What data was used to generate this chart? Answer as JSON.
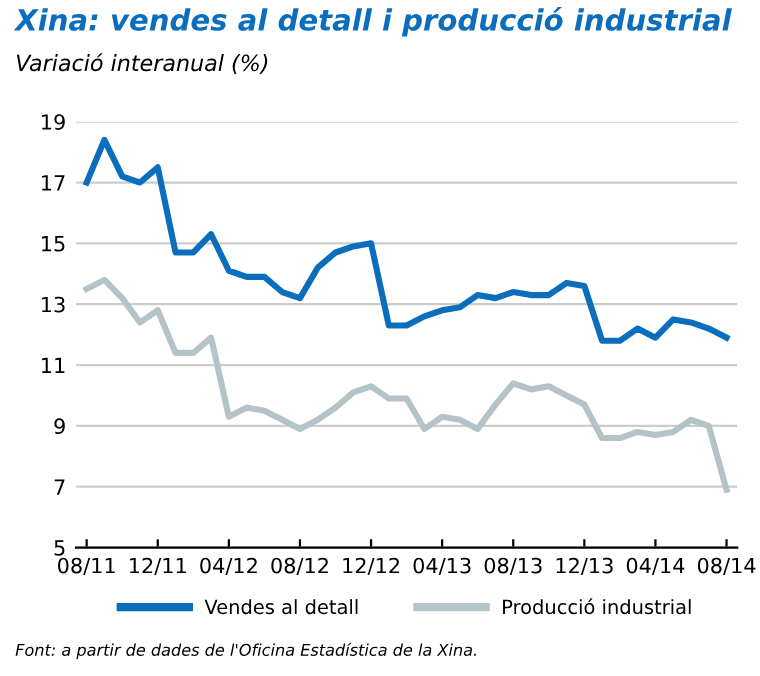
{
  "chart_data": {
    "type": "line",
    "title": "Xina: vendes al detall i producció industrial",
    "subtitle": "Variació interanual (%)",
    "categories": [
      "08/11",
      null,
      null,
      null,
      "12/11",
      null,
      null,
      null,
      "04/12",
      null,
      null,
      null,
      "08/12",
      null,
      null,
      null,
      "12/12",
      null,
      null,
      null,
      "04/13",
      null,
      null,
      null,
      "08/13",
      null,
      null,
      null,
      "12/13",
      null,
      null,
      null,
      "04/14",
      null,
      null,
      null,
      "08/14"
    ],
    "series": [
      {
        "name": "Vendes al detall",
        "color": "#0a6ebd",
        "values": [
          17.0,
          18.4,
          17.2,
          17.0,
          17.5,
          14.7,
          14.7,
          15.3,
          14.1,
          13.9,
          13.9,
          13.4,
          13.2,
          14.2,
          14.7,
          14.9,
          15.0,
          12.3,
          12.3,
          12.6,
          12.8,
          12.9,
          13.3,
          13.2,
          13.4,
          13.3,
          13.3,
          13.7,
          13.6,
          11.8,
          11.8,
          12.2,
          11.9,
          12.5,
          12.4,
          12.2,
          11.9
        ]
      },
      {
        "name": "Producció industrial",
        "color": "#b4c3c8",
        "values": [
          13.5,
          13.8,
          13.2,
          12.4,
          12.8,
          11.4,
          11.4,
          11.9,
          9.3,
          9.6,
          9.5,
          9.2,
          8.9,
          9.2,
          9.6,
          10.1,
          10.3,
          9.9,
          9.9,
          8.9,
          9.3,
          9.2,
          8.9,
          9.7,
          10.4,
          10.2,
          10.3,
          10.0,
          9.7,
          8.6,
          8.6,
          8.8,
          8.7,
          8.8,
          9.2,
          9.0,
          6.9
        ]
      }
    ],
    "ylim": [
      5,
      19
    ],
    "yticks": [
      5,
      7,
      9,
      11,
      13,
      15,
      17,
      19
    ],
    "grid": "y",
    "legend": "bottom",
    "line_style": "solid",
    "marker": "none",
    "annotations": [
      "Font: a partir de dades de l'Oficina Estadística de la Xina."
    ]
  }
}
